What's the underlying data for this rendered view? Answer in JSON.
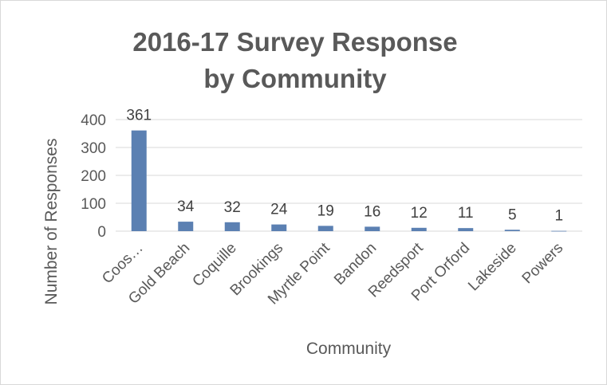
{
  "chart_data": {
    "type": "bar",
    "title": "2016-17 Survey Response by Community",
    "xlabel": "Community",
    "ylabel": "Number of Responses",
    "categories": [
      "Coos…",
      "Gold Beach",
      "Coquille",
      "Brookings",
      "Myrtle Point",
      "Bandon",
      "Reedsport",
      "Port Orford",
      "Lakeside",
      "Powers"
    ],
    "values": [
      361,
      34,
      32,
      24,
      19,
      16,
      12,
      11,
      5,
      1
    ],
    "data_labels": [
      "361",
      "34",
      "32",
      "24",
      "19",
      "16",
      "12",
      "11",
      "5",
      "1"
    ],
    "ylim": [
      0,
      400
    ],
    "yticks": [
      0,
      100,
      200,
      300,
      400
    ],
    "ytick_labels": [
      "0",
      "100",
      "200",
      "300",
      "400"
    ],
    "grid": true,
    "bar_color": "#5b80b2",
    "grid_color": "#d9d9d9"
  }
}
